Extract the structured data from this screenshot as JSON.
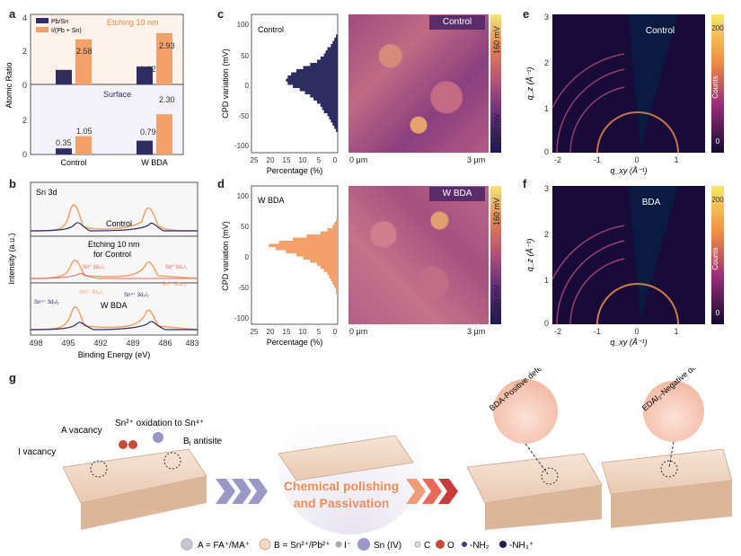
{
  "panel_labels": {
    "a": "a",
    "b": "b",
    "c": "c",
    "d": "d",
    "e": "e",
    "f": "f",
    "g": "g"
  },
  "chart_data": [
    {
      "type": "bar",
      "panel": "a",
      "ylabel": "Atomic Ratio",
      "categories": [
        "Control",
        "W BDA"
      ],
      "legend": [
        "Pb/Sn",
        "I/(Pb + Sn)"
      ],
      "subplots": [
        {
          "label": "Etching 10 nm",
          "series": [
            {
              "name": "Pb/Sn",
              "values": [
                0.83,
                1.02
              ]
            },
            {
              "name": "I/(Pb + Sn)",
              "values": [
                2.58,
                2.93
              ]
            }
          ],
          "ylim": [
            0,
            4
          ],
          "yticks": [
            "0",
            "2",
            "4"
          ]
        },
        {
          "label": "Surface",
          "series": [
            {
              "name": "Pb/Sn",
              "values": [
                0.35,
                0.79
              ]
            },
            {
              "name": "I/(Pb + Sn)",
              "values": [
                1.05,
                2.3
              ]
            }
          ],
          "ylim": [
            0,
            4
          ],
          "yticks": [
            "0",
            "2"
          ]
        }
      ],
      "value_labels": {
        "etch": [
          "0.83",
          "2.58",
          "1.02",
          "2.93"
        ],
        "surf": [
          "0.35",
          "1.05",
          "0.79",
          "2.30"
        ]
      }
    },
    {
      "type": "line",
      "panel": "b",
      "title": "Sn 3d",
      "xlabel": "Binding Energy (eV)",
      "ylabel": "Intensity (a.u.)",
      "xticks": [
        "498",
        "495",
        "492",
        "489",
        "486",
        "483"
      ],
      "xlim": [
        499,
        482
      ],
      "traces": [
        "Control",
        "Etching 10 nm for Control",
        "W BDA"
      ],
      "annotations": {
        "control": "Control",
        "etch1": "Etching 10 nm",
        "etch2": "for Control",
        "wbda": "W BDA",
        "sn0_52": "Sn⁰ 3d₅/₂",
        "sn0_32": "Sn⁰ 3d₃/₂",
        "sn2_52": "Sn²⁺ 3d₅/₂",
        "sn2_32": "Sn²⁺ 3d₃/₂",
        "sn4_52": "Sn⁴⁺ 3d₅/₂",
        "sn4_32": "Sn⁴⁺ 3d₃/₂"
      }
    },
    {
      "type": "bar",
      "panel": "c",
      "label": "Control",
      "xlabel": "Percentage (%)",
      "ylabel": "CPD variation (mV)",
      "xticks": [
        "25",
        "20",
        "15",
        "10",
        "5",
        "0"
      ],
      "yticks": [
        "100",
        "50",
        "0",
        "-50",
        "-100"
      ],
      "bins_mv": [
        75,
        70,
        65,
        60,
        55,
        50,
        45,
        40,
        35,
        30,
        25,
        20,
        15,
        10,
        5,
        0,
        -5,
        -10,
        -15,
        -20,
        -25,
        -30,
        -35,
        -40,
        -45,
        -50,
        -55,
        -60,
        -65,
        -70,
        -75
      ],
      "values": [
        0.5,
        1,
        1.5,
        2,
        3,
        3.5,
        4,
        5,
        6,
        8,
        10,
        12,
        13.5,
        14.5,
        15,
        14.5,
        13,
        11,
        9.5,
        8,
        7,
        6,
        5,
        4.5,
        4,
        3,
        2.5,
        2,
        1.5,
        1,
        0.5
      ]
    },
    {
      "type": "bar",
      "panel": "d",
      "label": "W BDA",
      "xlabel": "Percentage (%)",
      "ylabel": "CPD variation (mV)",
      "xticks": [
        "25",
        "20",
        "15",
        "10",
        "5",
        "0"
      ],
      "yticks": [
        "100",
        "50",
        "0",
        "-50",
        "-100"
      ],
      "bins_mv": [
        55,
        50,
        45,
        40,
        35,
        30,
        25,
        20,
        15,
        10,
        5,
        0,
        -5,
        -10,
        -15,
        -20,
        -25,
        -30,
        -35,
        -40,
        -45,
        -50,
        -55,
        -60
      ],
      "values": [
        0.5,
        1,
        1.5,
        3,
        5,
        9,
        13,
        17,
        20,
        18,
        15,
        12,
        10,
        8,
        6,
        5,
        4,
        3,
        2.5,
        2,
        1.5,
        1,
        0.5,
        0.5
      ]
    },
    {
      "type": "heatmap",
      "panel": "kpfm",
      "images": [
        {
          "label": "Control",
          "scale_top": "160 mV",
          "scale_bottom": "-160 mV",
          "x_start": "0 μm",
          "x_end": "3 μm"
        },
        {
          "label": "W BDA",
          "scale_top": "160 mV",
          "scale_bottom": "-160 mV",
          "x_start": "0 μm",
          "x_end": "3 μm"
        }
      ]
    },
    {
      "type": "heatmap",
      "panel": "giwaxs",
      "xlabel": "q_xy (Å⁻¹)",
      "ylabel": "q_z (Å⁻¹)",
      "xticks": [
        "-2",
        "-1",
        "0",
        "1"
      ],
      "yticks": [
        "3",
        "2",
        "1",
        "0"
      ],
      "colorbar_label": "Counts",
      "colorbar_ticks": [
        "200",
        "100",
        "0"
      ],
      "images": [
        {
          "label": "Control"
        },
        {
          "label": "BDA"
        }
      ]
    }
  ],
  "schematic": {
    "a_vacancy": "A vacancy",
    "i_vacancy": "I vacancy",
    "sn_oxidation": "Sn²⁺ oxidation to Sn⁴⁺",
    "b_antisite": "B",
    "b_antisite_sub": "I",
    "b_antisite_rest": " antisite",
    "arrow_line1": "Chemical polishing",
    "arrow_line2": "and Passivation",
    "bda_pos": "BDA-Positive defect",
    "edai_neg": "EDAI₂-Negative defect"
  },
  "legend": {
    "a": "A = FA⁺/MA⁺",
    "b": "B = Sn²⁺/Pb²⁺",
    "i": "I⁻",
    "sn4": "Sn (IV)",
    "c": "C",
    "o": "O",
    "nh2": "-NH₂",
    "nh3": "-NH₃⁺"
  },
  "colors": {
    "navy": "#2f2c64",
    "orange": "#f4a06a",
    "etch_bg": "#fdf3ec",
    "surf_bg": "#f3f2f8",
    "kpfm_mid": "#b0517a"
  }
}
